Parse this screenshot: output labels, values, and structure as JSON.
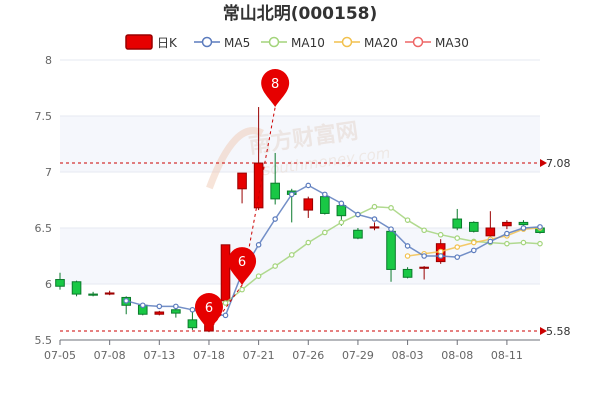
{
  "chart_data": {
    "type": "candlestick",
    "title": "常山北明(000158)",
    "legend": [
      {
        "name": "日K",
        "color": "#e60000"
      },
      {
        "name": "MA5",
        "color": "#5b7bbd"
      },
      {
        "name": "MA10",
        "color": "#a3d47b"
      },
      {
        "name": "MA20",
        "color": "#f2c14e"
      },
      {
        "name": "MA30",
        "color": "#ee6666"
      }
    ],
    "colors": {
      "up": "#e60000",
      "down": "#19c845",
      "up_border": "#990000",
      "down_border": "#0b7a2c",
      "grid_band": "#f5f7fc",
      "ref_line": "#cc0000"
    },
    "ylim": [
      5.5,
      8
    ],
    "yticks": [
      "5.5",
      "6",
      "6.5",
      "7",
      "7.5",
      "8"
    ],
    "xtick_labels": [
      {
        "i": 0,
        "label": "07-05"
      },
      {
        "i": 3,
        "label": "07-08"
      },
      {
        "i": 6,
        "label": "07-13"
      },
      {
        "i": 9,
        "label": "07-18"
      },
      {
        "i": 12,
        "label": "07-21"
      },
      {
        "i": 15,
        "label": "07-26"
      },
      {
        "i": 18,
        "label": "07-29"
      },
      {
        "i": 21,
        "label": "08-03"
      },
      {
        "i": 24,
        "label": "08-08"
      },
      {
        "i": 27,
        "label": "08-11"
      }
    ],
    "candles": [
      {
        "o": 6.04,
        "c": 5.98,
        "h": 6.1,
        "l": 5.95
      },
      {
        "o": 6.02,
        "c": 5.91,
        "h": 6.03,
        "l": 5.89
      },
      {
        "o": 5.91,
        "c": 5.9,
        "h": 5.93,
        "l": 5.89
      },
      {
        "o": 5.91,
        "c": 5.92,
        "h": 5.94,
        "l": 5.9
      },
      {
        "o": 5.88,
        "c": 5.81,
        "h": 5.89,
        "l": 5.73
      },
      {
        "o": 5.81,
        "c": 5.73,
        "h": 5.83,
        "l": 5.72
      },
      {
        "o": 5.73,
        "c": 5.75,
        "h": 5.76,
        "l": 5.72
      },
      {
        "o": 5.77,
        "c": 5.74,
        "h": 5.79,
        "l": 5.7
      },
      {
        "o": 5.68,
        "c": 5.61,
        "h": 5.79,
        "l": 5.59
      },
      {
        "o": 5.58,
        "c": 5.77,
        "h": 5.79,
        "l": 5.57
      },
      {
        "o": 5.85,
        "c": 6.35,
        "h": 6.35,
        "l": 5.84
      },
      {
        "o": 6.85,
        "c": 6.99,
        "h": 6.99,
        "l": 6.72
      },
      {
        "o": 6.68,
        "c": 7.08,
        "h": 7.58,
        "l": 6.66
      },
      {
        "o": 6.9,
        "c": 6.76,
        "h": 7.17,
        "l": 6.71
      },
      {
        "o": 6.83,
        "c": 6.8,
        "h": 6.85,
        "l": 6.55
      },
      {
        "o": 6.66,
        "c": 6.76,
        "h": 6.78,
        "l": 6.59
      },
      {
        "o": 6.78,
        "c": 6.63,
        "h": 6.8,
        "l": 6.62
      },
      {
        "o": 6.7,
        "c": 6.61,
        "h": 6.71,
        "l": 6.52
      },
      {
        "o": 6.48,
        "c": 6.41,
        "h": 6.5,
        "l": 6.4
      },
      {
        "o": 6.5,
        "c": 6.51,
        "h": 6.55,
        "l": 6.48
      },
      {
        "o": 6.47,
        "c": 6.13,
        "h": 6.49,
        "l": 6.02
      },
      {
        "o": 6.13,
        "c": 6.06,
        "h": 6.15,
        "l": 6.05
      },
      {
        "o": 6.14,
        "c": 6.15,
        "h": 6.16,
        "l": 6.04
      },
      {
        "o": 6.2,
        "c": 6.36,
        "h": 6.4,
        "l": 6.18
      },
      {
        "o": 6.58,
        "c": 6.5,
        "h": 6.67,
        "l": 6.48
      },
      {
        "o": 6.55,
        "c": 6.47,
        "h": 6.56,
        "l": 6.46
      },
      {
        "o": 6.43,
        "c": 6.5,
        "h": 6.65,
        "l": 6.41
      },
      {
        "o": 6.52,
        "c": 6.55,
        "h": 6.57,
        "l": 6.49
      },
      {
        "o": 6.55,
        "c": 6.53,
        "h": 6.57,
        "l": 6.52
      },
      {
        "o": 6.5,
        "c": 6.46,
        "h": 6.52,
        "l": 6.45
      }
    ],
    "ma5": [
      null,
      null,
      null,
      null,
      5.85,
      5.81,
      5.8,
      5.8,
      5.77,
      5.73,
      5.72,
      6.1,
      6.35,
      6.58,
      6.8,
      6.88,
      6.8,
      6.72,
      6.62,
      6.58,
      6.49,
      6.34,
      6.25,
      6.25,
      6.24,
      6.3,
      6.38,
      6.45,
      6.5,
      6.51
    ],
    "ma10": [
      null,
      null,
      null,
      null,
      null,
      null,
      null,
      null,
      null,
      5.8,
      5.83,
      5.95,
      6.07,
      6.16,
      6.26,
      6.37,
      6.46,
      6.55,
      6.62,
      6.69,
      6.68,
      6.57,
      6.48,
      6.44,
      6.41,
      6.38,
      6.37,
      6.36,
      6.37,
      6.36
    ],
    "ma20": [
      null,
      null,
      null,
      null,
      null,
      null,
      null,
      null,
      null,
      null,
      null,
      null,
      null,
      null,
      null,
      null,
      null,
      null,
      null,
      null,
      null,
      6.25,
      6.27,
      6.29,
      6.33,
      6.37,
      6.4,
      6.43,
      6.49,
      6.5
    ],
    "ma30": [],
    "pins": [
      {
        "label": "6",
        "i": 9,
        "value": 5.58
      },
      {
        "label": "6",
        "i": 11,
        "value": 5.99
      },
      {
        "label": "8",
        "i": 13,
        "value": 7.58
      }
    ],
    "ref_lines": [
      {
        "value": 7.08,
        "label": "7.08"
      },
      {
        "value": 5.58,
        "label": "5.58"
      }
    ]
  }
}
